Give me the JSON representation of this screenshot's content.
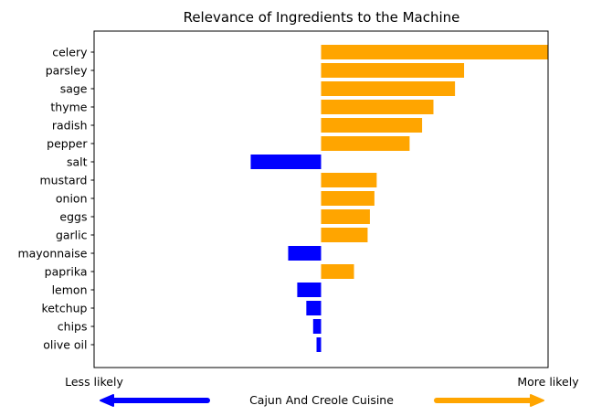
{
  "chart_data": {
    "type": "bar",
    "orientation": "horizontal",
    "title": "Relevance of Ingredients to the Machine",
    "categories": [
      "celery",
      "parsley",
      "sage",
      "thyme",
      "radish",
      "pepper",
      "salt",
      "mustard",
      "onion",
      "eggs",
      "garlic",
      "mayonnaise",
      "paprika",
      "lemon",
      "ketchup",
      "chips",
      "olive oil"
    ],
    "values": [
      1.0,
      0.63,
      0.59,
      0.495,
      0.445,
      0.39,
      -0.31,
      0.245,
      0.235,
      0.215,
      0.205,
      -0.145,
      0.145,
      -0.105,
      -0.065,
      -0.035,
      -0.02
    ],
    "xlim": [
      -1.0,
      1.0
    ],
    "grid": false,
    "colors": {
      "positive": "#FFA500",
      "negative": "#0000FF"
    },
    "x_axis_ends": {
      "left": "Less likely",
      "right": "More likely"
    },
    "cuisine_label": "Cajun And Creole Cuisine"
  }
}
